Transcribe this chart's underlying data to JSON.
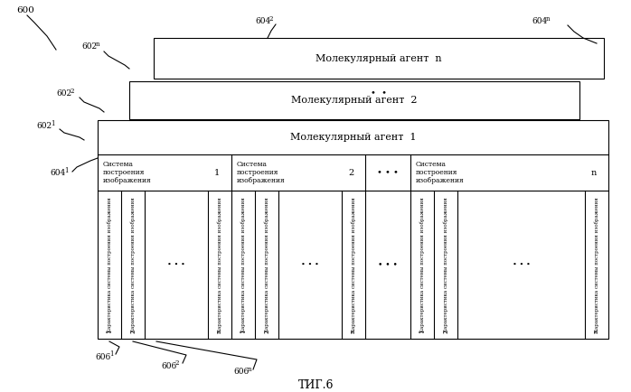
{
  "bg": "#ffffff",
  "lw": 0.8,
  "mol_n": "Молекулярный агент  n",
  "mol_2": "Молекулярный агент  2",
  "mol_1": "Молекулярный агент  1",
  "sys_img": "Система\nпостроения\nизображения",
  "char_sys": "Характеристика системы построения изображения",
  "fig_caption": "ΤИГ.6",
  "title_600": "600",
  "title_602n": "602",
  "title_6022": "602",
  "title_6021": "602",
  "title_6041": "604",
  "title_6042": "604",
  "title_604n": "604",
  "title_6061": "606",
  "title_6062": "606",
  "title_606n": "606",
  "sub_n": "n",
  "sub_2": "2",
  "sub_1": "1"
}
